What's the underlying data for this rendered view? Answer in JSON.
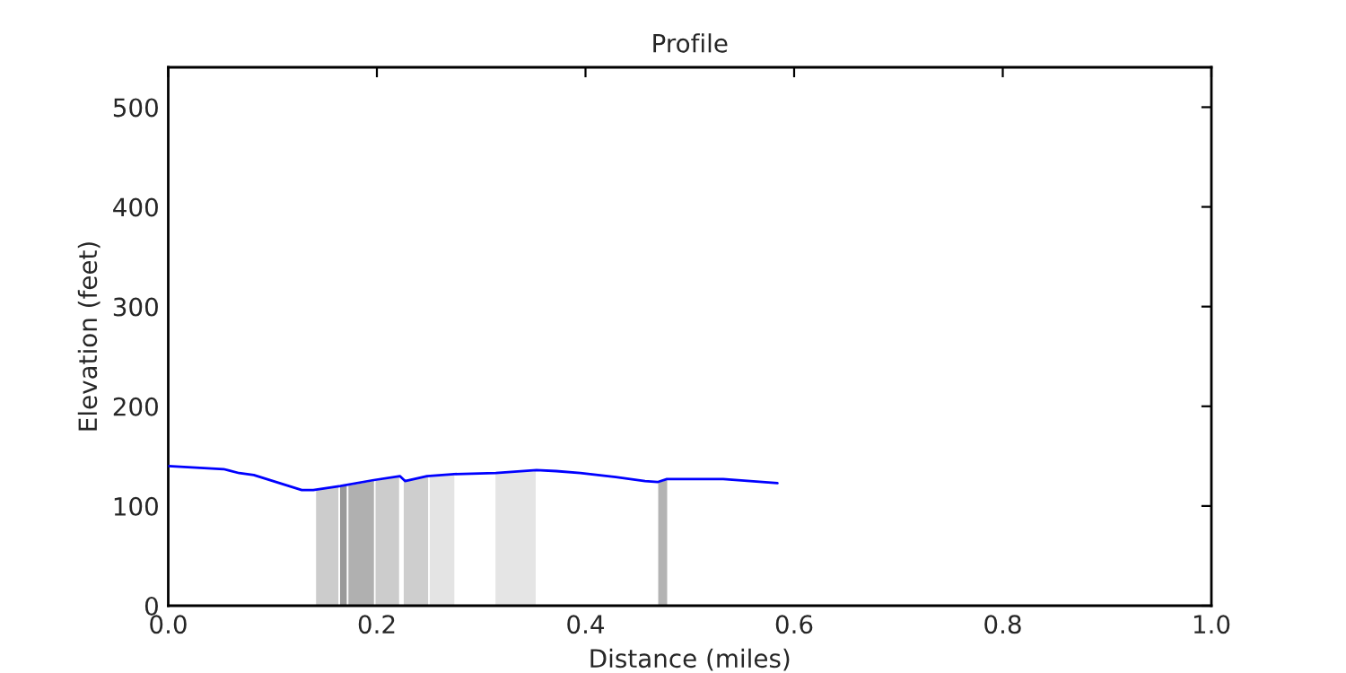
{
  "chart_data": {
    "type": "line",
    "title": "Profile",
    "xlabel": "Distance (miles)",
    "ylabel": "Elevation (feet)",
    "xlim": [
      0,
      1
    ],
    "xticks": [
      {
        "value": 0,
        "label": "0.0"
      },
      0.2,
      0.4,
      0.6,
      0.8,
      {
        "value": 1,
        "label": "1.0"
      }
    ],
    "ylim": [
      0,
      540
    ],
    "yticks": [
      0,
      100,
      200,
      300,
      400,
      500
    ],
    "grid": false,
    "legend": false,
    "marker": "none",
    "line_style": "solid",
    "series": [
      {
        "color": "#0000ff",
        "x": [
          0,
          0.053,
          0.068,
          0.082,
          0.128,
          0.139,
          0.165,
          0.197,
          0.222,
          0.227,
          0.248,
          0.274,
          0.314,
          0.353,
          0.372,
          0.395,
          0.429,
          0.457,
          0.469,
          0.478,
          0.532,
          0.584
        ],
        "values": [
          140,
          137,
          133,
          131,
          116,
          116,
          120,
          126,
          130,
          125,
          130,
          132,
          133,
          136,
          135,
          133,
          129,
          125,
          124,
          127,
          127,
          123
        ]
      },
      {
        "type": "area",
        "color": "#cccccc",
        "x": [
          0.141,
          0.164
        ],
        "values": [
          117,
          120
        ]
      },
      {
        "type": "area",
        "color": "#999999",
        "x": [
          0.164,
          0.172
        ],
        "values": [
          120,
          121
        ]
      },
      {
        "type": "area",
        "color": "#b0b0b0",
        "x": [
          0.172,
          0.198
        ],
        "values": [
          121,
          126
        ]
      },
      {
        "type": "area",
        "color": "#cccccc",
        "x": [
          0.198,
          0.222
        ],
        "values": [
          126,
          130
        ]
      },
      {
        "type": "area",
        "color": "#cecece",
        "x": [
          0.225,
          0.25
        ],
        "values": [
          127,
          130
        ]
      },
      {
        "type": "area",
        "color": "#e4e4e4",
        "x": [
          0.25,
          0.275
        ],
        "values": [
          130,
          132
        ]
      },
      {
        "type": "area",
        "color": "#e5e5e5",
        "x": [
          0.313,
          0.353
        ],
        "values": [
          133,
          136
        ]
      },
      {
        "type": "area",
        "color": "#b3b3b3",
        "x": [
          0.469,
          0.479
        ],
        "values": [
          124,
          127
        ]
      }
    ]
  }
}
